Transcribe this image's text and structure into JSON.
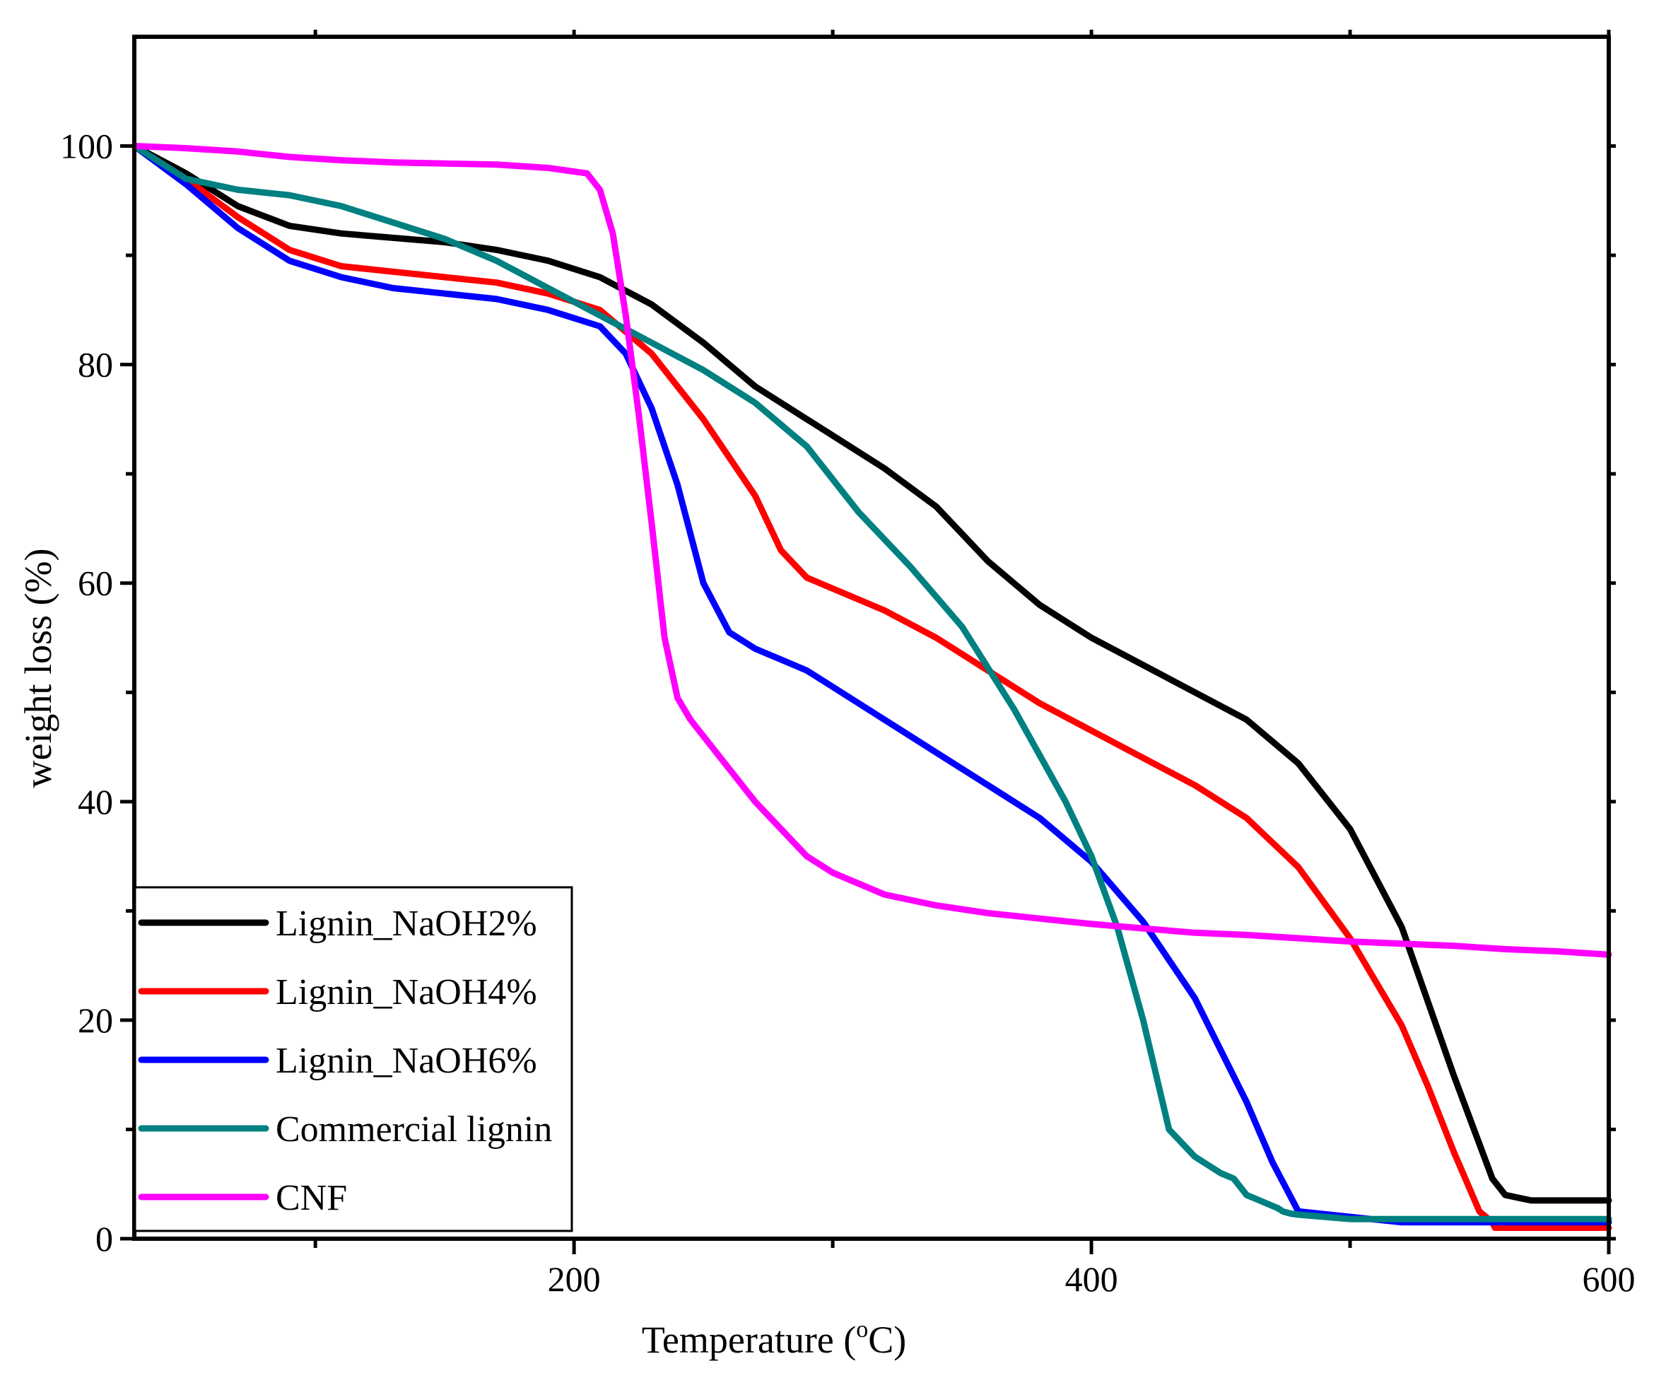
{
  "chart_data": {
    "type": "line",
    "title": "",
    "xlabel": "Temperature (",
    "xlabel_sup": "o",
    "xlabel_unit": "C)",
    "ylabel": "weight loss (%)",
    "xlim": [
      30,
      600
    ],
    "ylim": [
      0,
      110
    ],
    "x_major_ticks": [
      200,
      400,
      600
    ],
    "x_minor_ticks": [
      100,
      300,
      500
    ],
    "y_major_ticks": [
      0,
      20,
      40,
      60,
      80,
      100
    ],
    "y_minor_ticks": [
      10,
      30,
      50,
      70,
      90
    ],
    "x_tick_labels": [
      "200",
      "400",
      "600"
    ],
    "y_tick_labels": [
      "0",
      "20",
      "40",
      "60",
      "80",
      "100"
    ],
    "grid": false,
    "legend_position": "bottom-left",
    "series": [
      {
        "name": "Lignin_NaOH2%",
        "color": "#000000",
        "x": [
          30,
          50,
          70,
          90,
          110,
          130,
          150,
          170,
          190,
          210,
          230,
          250,
          270,
          290,
          300,
          320,
          340,
          360,
          380,
          400,
          420,
          440,
          460,
          480,
          500,
          520,
          540,
          555,
          560,
          570,
          580,
          600
        ],
        "y": [
          100,
          97.5,
          94.5,
          92.7,
          92.0,
          91.6,
          91.2,
          90.5,
          89.5,
          88.0,
          85.5,
          82.0,
          78.0,
          75.0,
          73.5,
          70.5,
          67.0,
          62.0,
          58.0,
          55.0,
          52.5,
          50.0,
          47.5,
          43.5,
          37.5,
          28.5,
          15.0,
          5.5,
          4.0,
          3.5,
          3.5,
          3.5
        ]
      },
      {
        "name": "Lignin_NaOH4%",
        "color": "#ff0000",
        "x": [
          30,
          50,
          70,
          90,
          110,
          130,
          150,
          170,
          190,
          210,
          230,
          250,
          270,
          280,
          290,
          300,
          320,
          340,
          360,
          380,
          400,
          420,
          440,
          460,
          480,
          500,
          520,
          530,
          540,
          550,
          555,
          556,
          560,
          600
        ],
        "y": [
          100,
          97.0,
          93.5,
          90.5,
          89.0,
          88.5,
          88.0,
          87.5,
          86.5,
          85.0,
          81.0,
          75.0,
          68.0,
          63.0,
          60.5,
          59.5,
          57.5,
          55.0,
          52.0,
          49.0,
          46.5,
          44.0,
          41.5,
          38.5,
          34.0,
          27.5,
          19.5,
          14.0,
          8.0,
          2.5,
          1.5,
          1.0,
          1.0,
          1.0
        ]
      },
      {
        "name": "Lignin_NaOH6%",
        "color": "#0000ff",
        "x": [
          30,
          50,
          70,
          90,
          110,
          130,
          150,
          170,
          190,
          210,
          220,
          230,
          240,
          250,
          260,
          270,
          280,
          290,
          300,
          320,
          340,
          360,
          380,
          400,
          420,
          440,
          460,
          470,
          480,
          500,
          520,
          524,
          530,
          600
        ],
        "y": [
          100,
          96.5,
          92.5,
          89.5,
          88.0,
          87.0,
          86.5,
          86.0,
          85.0,
          83.5,
          81.0,
          76.0,
          69.0,
          60.0,
          55.5,
          54.0,
          53.0,
          52.0,
          50.5,
          47.5,
          44.5,
          41.5,
          38.5,
          34.5,
          29.0,
          22.0,
          12.5,
          7.0,
          2.5,
          2.0,
          1.5,
          1.5,
          1.5,
          1.5
        ]
      },
      {
        "name": "Commercial lignin",
        "color": "#008080",
        "x": [
          30,
          50,
          70,
          90,
          110,
          130,
          150,
          170,
          190,
          210,
          230,
          250,
          270,
          290,
          310,
          330,
          350,
          370,
          390,
          400,
          410,
          420,
          430,
          440,
          450,
          455,
          460,
          470,
          472,
          474,
          477,
          480,
          490,
          500,
          600
        ],
        "y": [
          100,
          97.0,
          96.0,
          95.5,
          94.5,
          93.0,
          91.5,
          89.5,
          87.0,
          84.5,
          82.0,
          79.5,
          76.5,
          72.5,
          66.5,
          61.5,
          56.0,
          48.5,
          40.0,
          35.0,
          28.5,
          20.0,
          10.0,
          7.5,
          6.0,
          5.5,
          4.0,
          3.0,
          2.8,
          2.5,
          2.3,
          2.2,
          2.0,
          1.8,
          1.8
        ]
      },
      {
        "name": "CNF",
        "color": "#ff00ff",
        "x": [
          30,
          50,
          70,
          90,
          110,
          130,
          150,
          170,
          190,
          205,
          210,
          215,
          220,
          225,
          230,
          235,
          240,
          245,
          250,
          260,
          270,
          280,
          290,
          300,
          320,
          340,
          360,
          380,
          400,
          420,
          440,
          460,
          480,
          500,
          520,
          540,
          560,
          580,
          600
        ],
        "y": [
          100,
          99.8,
          99.5,
          99.0,
          98.7,
          98.5,
          98.4,
          98.3,
          98.0,
          97.5,
          96.0,
          92.0,
          84.5,
          75.5,
          65.5,
          55.0,
          49.5,
          47.5,
          46.0,
          43.0,
          40.0,
          37.5,
          35.0,
          33.5,
          31.5,
          30.5,
          29.8,
          29.3,
          28.8,
          28.4,
          28.0,
          27.8,
          27.5,
          27.2,
          27.0,
          26.8,
          26.5,
          26.3,
          26.0
        ]
      }
    ]
  }
}
